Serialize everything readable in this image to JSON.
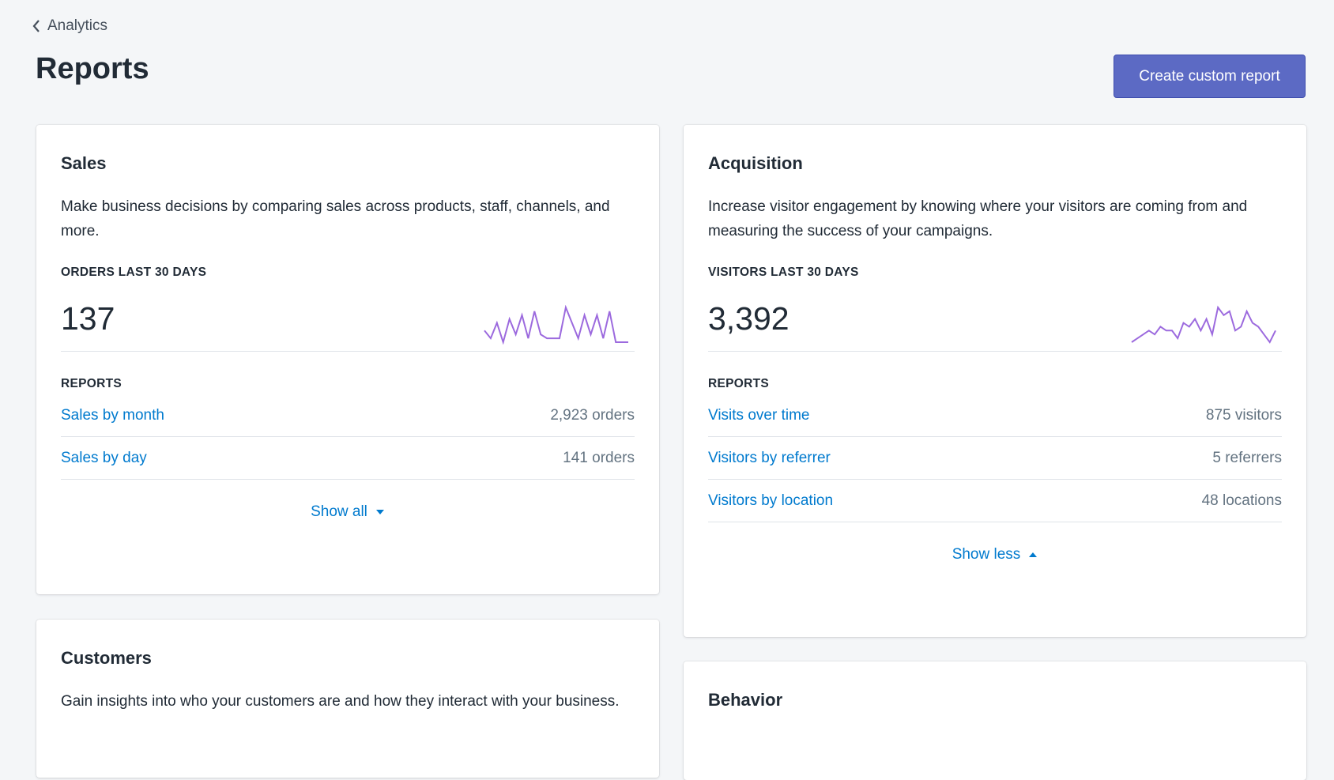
{
  "nav": {
    "back": "Analytics"
  },
  "header": {
    "title": "Reports",
    "button": "Create custom report"
  },
  "cards": [
    {
      "title": "Sales",
      "description": "Make business decisions by comparing sales across products, staff, channels, and more.",
      "metric_label": "ORDERS LAST 30 DAYS",
      "metric_value": "137",
      "sparkline": [
        4,
        2,
        6,
        1,
        7,
        3,
        8,
        2,
        9,
        3,
        2,
        2,
        2,
        10,
        6,
        2,
        8,
        3,
        8,
        2,
        9,
        1,
        1,
        1
      ],
      "reports_label": "REPORTS",
      "reports": [
        {
          "name": "Sales by month",
          "count": "2,923 orders"
        },
        {
          "name": "Sales by day",
          "count": "141 orders"
        }
      ],
      "toggle": "Show all",
      "toggle_dir": "down"
    },
    {
      "title": "Acquisition",
      "description": "Increase visitor engagement by knowing where your visitors are coming from and measuring the success of your campaigns.",
      "metric_label": "VISITORS LAST 30 DAYS",
      "metric_value": "3,392",
      "sparkline": [
        1,
        2,
        3,
        4,
        3,
        5,
        4,
        4,
        2,
        6,
        5,
        7,
        4,
        7,
        3,
        10,
        8,
        9,
        4,
        5,
        9,
        6,
        5,
        3,
        1,
        4
      ],
      "reports_label": "REPORTS",
      "reports": [
        {
          "name": "Visits over time",
          "count": "875 visitors"
        },
        {
          "name": "Visitors by referrer",
          "count": "5 referrers"
        },
        {
          "name": "Visitors by location",
          "count": "48 locations"
        }
      ],
      "toggle": "Show less",
      "toggle_dir": "up"
    },
    {
      "title": "Customers",
      "description": "Gain insights into who your customers are and how they interact with your business."
    },
    {
      "title": "Behavior"
    }
  ]
}
